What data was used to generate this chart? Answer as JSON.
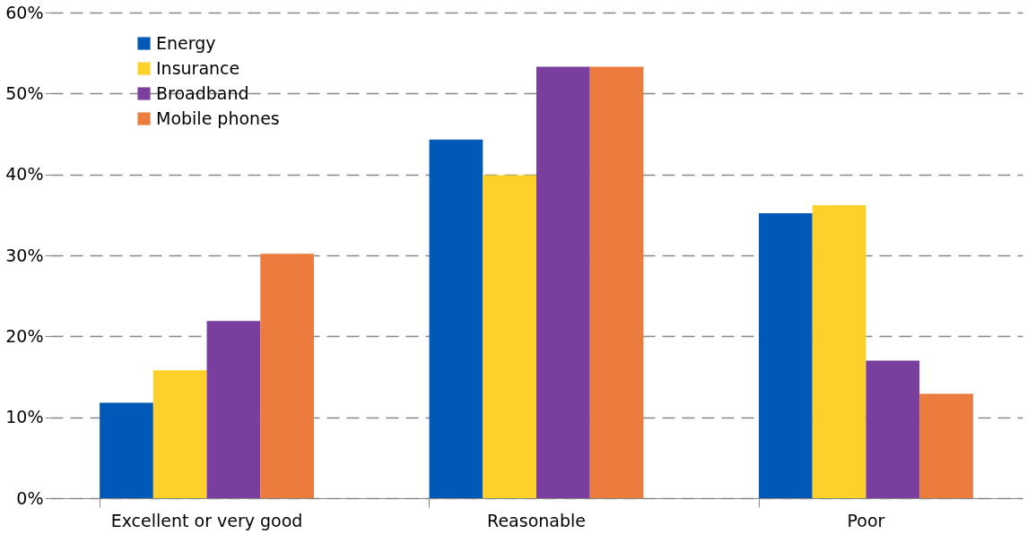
{
  "chart_data": {
    "type": "bar",
    "categories": [
      "Excellent or very good",
      "Reasonable",
      "Poor"
    ],
    "series": [
      {
        "name": "Energy",
        "color": "#0058b7",
        "values": [
          11.8,
          44.3,
          35.2
        ]
      },
      {
        "name": "Insurance",
        "color": "#fdd12a",
        "values": [
          15.8,
          39.9,
          36.2
        ]
      },
      {
        "name": "Broadband",
        "color": "#7a3e9f",
        "values": [
          21.9,
          53.3,
          17.0
        ]
      },
      {
        "name": "Mobile phones",
        "color": "#ec7b3e",
        "values": [
          30.2,
          53.3,
          12.9
        ]
      }
    ],
    "ylim": [
      0,
      60
    ],
    "yticks": [
      {
        "value": 0,
        "label": "0%"
      },
      {
        "value": 10,
        "label": "10%"
      },
      {
        "value": 20,
        "label": "20%"
      },
      {
        "value": 30,
        "label": "30%"
      },
      {
        "value": 40,
        "label": "40%"
      },
      {
        "value": 50,
        "label": "50%"
      },
      {
        "value": 60,
        "label": "60%"
      }
    ],
    "grid": "y",
    "legend": "top left"
  }
}
